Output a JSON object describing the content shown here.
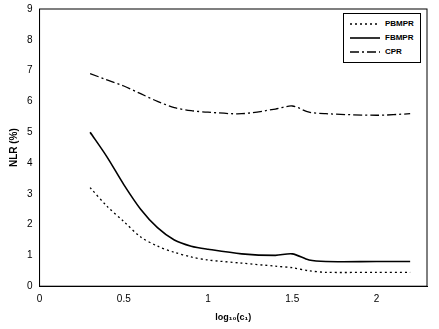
{
  "chart_data": {
    "type": "line",
    "x_label": "log₁₀(c₁)",
    "y_label": "NLR (%)",
    "x": [
      0.3,
      0.4,
      0.5,
      0.6,
      0.7,
      0.8,
      0.9,
      1.0,
      1.2,
      1.4,
      1.5,
      1.6,
      1.7,
      2.0,
      2.2
    ],
    "series": [
      {
        "name": "PBMPR",
        "color": "#000000",
        "line_style": "dotted",
        "values": [
          3.2,
          2.6,
          2.1,
          1.6,
          1.3,
          1.1,
          0.95,
          0.85,
          0.75,
          0.65,
          0.6,
          0.5,
          0.45,
          0.45,
          0.45
        ]
      },
      {
        "name": "FBMPR",
        "color": "#000000",
        "line_style": "solid",
        "values": [
          5.0,
          4.2,
          3.3,
          2.5,
          1.9,
          1.5,
          1.3,
          1.2,
          1.05,
          1.0,
          1.05,
          0.85,
          0.8,
          0.8,
          0.8
        ]
      },
      {
        "name": "CPR",
        "color": "#000000",
        "line_style": "dashdot",
        "values": [
          6.9,
          6.7,
          6.5,
          6.25,
          6.0,
          5.8,
          5.7,
          5.65,
          5.6,
          5.75,
          5.85,
          5.65,
          5.6,
          5.55,
          5.6
        ]
      }
    ],
    "xlim": [
      0,
      2.3
    ],
    "xticks": [
      0,
      0.5,
      1,
      1.5,
      2
    ],
    "ylim": [
      0,
      9
    ],
    "yticks": [
      0,
      1,
      2,
      3,
      4,
      5,
      6,
      7,
      8,
      9
    ],
    "grid": false,
    "legend": "upper right",
    "marker": "none"
  }
}
